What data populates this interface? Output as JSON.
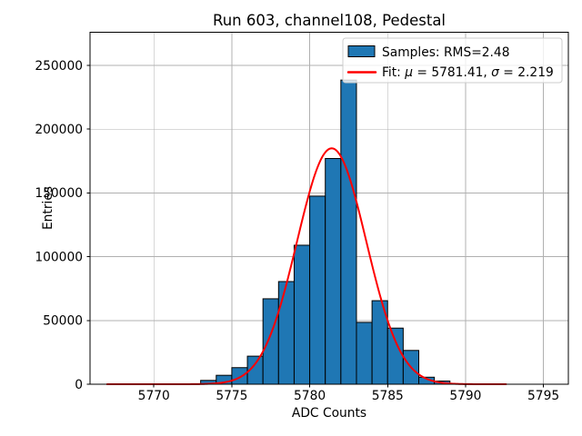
{
  "figure": {
    "title": "Run 603, channel108, Pedestal",
    "xlabel": "ADC Counts",
    "ylabel": "Entries"
  },
  "legend": {
    "samples_label": "Samples: RMS=2.48",
    "fit_label": "Fit: μ = 5781.41, σ = 2.219",
    "fit_label_parts": [
      {
        "text": "Fit: ",
        "italic": false
      },
      {
        "text": "μ",
        "italic": true
      },
      {
        "text": " = 5781.41, ",
        "italic": false
      },
      {
        "text": "σ",
        "italic": true
      },
      {
        "text": " = 2.219",
        "italic": false
      }
    ]
  },
  "colors": {
    "bar_fill": "#1f77b4",
    "bar_edge": "#000000",
    "fit_line": "#ff0000",
    "grid": "#b0b0b0",
    "spine": "#000000",
    "background": "#ffffff",
    "legend_border": "#cccccc",
    "legend_fill": "#ffffff"
  },
  "chart_data": {
    "type": "bar",
    "subtype": "histogram-with-gaussian-fit",
    "title": "Run 603, channel108, Pedestal",
    "xlabel": "ADC Counts",
    "ylabel": "Entries",
    "bin_width": 1,
    "bin_left_edges": [
      5773,
      5774,
      5775,
      5776,
      5777,
      5778,
      5779,
      5780,
      5781,
      5782,
      5783,
      5784,
      5785,
      5786,
      5787,
      5788
    ],
    "counts": [
      3000,
      7000,
      13000,
      22000,
      67000,
      80500,
      109000,
      147500,
      177000,
      238500,
      48500,
      65500,
      44000,
      26500,
      5500,
      2500
    ],
    "rms": 2.48,
    "fit": {
      "mu": 5781.41,
      "sigma": 2.219,
      "amplitude": 185000,
      "x_start": 5767.0,
      "x_end": 5792.6
    },
    "xlim": [
      5765.9,
      5796.6
    ],
    "ylim": [
      0,
      276000
    ],
    "xticks": [
      5770,
      5775,
      5780,
      5785,
      5790,
      5795
    ],
    "yticks": [
      0,
      50000,
      100000,
      150000,
      200000,
      250000
    ],
    "grid": true,
    "legend_position": "upper-right"
  }
}
